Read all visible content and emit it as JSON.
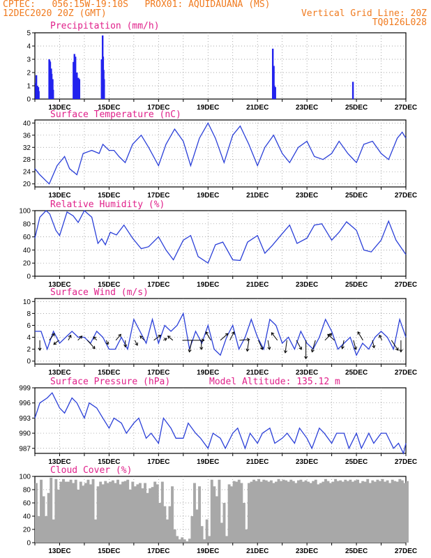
{
  "header": {
    "line1_left": "CPTEC:   056:15W-19:10S   PROX01: AQUIDAUANA (MS)",
    "line2_left": "12DEC2020 20Z (GMT)",
    "line2_right": "Vertical Grid Line: 20Z",
    "line3_right": "TQ0126L028"
  },
  "colors": {
    "header": "#f07a1e",
    "panel_title": "#e0208a",
    "line": "#2a3fd8",
    "bar": "#2222ee",
    "cloud": "#a8a8a8",
    "arrow": "#000000"
  },
  "chart_data": [
    {
      "type": "bar",
      "title": "Precipitation (mm/h)",
      "xlabel": "",
      "ylabel": "",
      "ylim": [
        0,
        5
      ],
      "yticks": [
        "0",
        "1",
        "2",
        "3",
        "4",
        "5"
      ],
      "xticks": [
        "13DEC",
        "15DEC",
        "17DEC",
        "19DEC",
        "21DEC",
        "23DEC",
        "25DEC",
        "27DEC"
      ],
      "x": [
        12.04,
        12.06,
        12.08,
        12.1,
        12.14,
        12.16,
        12.58,
        12.6,
        12.62,
        12.66,
        12.68,
        12.72,
        12.74,
        13.56,
        13.6,
        13.62,
        13.64,
        13.66,
        13.7,
        13.72,
        13.74,
        13.76,
        13.8,
        14.7,
        14.74,
        14.76,
        14.78,
        14.8,
        21.62,
        21.66,
        21.68,
        21.72,
        24.86
      ],
      "values": [
        1.2,
        1.8,
        0.8,
        1.0,
        0.9,
        0.6,
        3.0,
        2.9,
        2.8,
        2.3,
        1.9,
        1.5,
        0.7,
        2.8,
        3.4,
        2.0,
        3.2,
        1.6,
        2.0,
        1.5,
        1.2,
        1.6,
        1.5,
        3.0,
        4.8,
        3.2,
        2.2,
        1.5,
        3.8,
        2.5,
        1.0,
        0.9,
        1.3
      ],
      "grid": true
    },
    {
      "type": "line",
      "title": "Surface Temperature (nC)",
      "ylim": [
        19,
        41
      ],
      "yticks": [
        "20",
        "24",
        "28",
        "32",
        "36",
        "40"
      ],
      "xticks": [
        "13DEC",
        "15DEC",
        "17DEC",
        "19DEC",
        "21DEC",
        "23DEC",
        "25DEC",
        "27DEC"
      ],
      "series": [
        {
          "x": [
            12.0,
            12.2,
            12.45,
            12.58,
            12.9,
            13.2,
            13.4,
            13.7,
            13.95,
            14.3,
            14.6,
            14.75,
            15.0,
            15.2,
            15.4,
            15.65,
            15.95,
            16.3,
            16.6,
            17.0,
            17.3,
            17.65,
            18.0,
            18.3,
            18.65,
            19.0,
            19.3,
            19.65,
            20.0,
            20.3,
            20.65,
            21.0,
            21.3,
            21.65,
            22.0,
            22.3,
            22.65,
            23.0,
            23.3,
            23.65,
            24.0,
            24.3,
            24.65,
            25.0,
            25.3,
            25.65,
            26.0,
            26.3,
            26.65,
            26.85,
            27.0
          ],
          "y": [
            25,
            23,
            21,
            20,
            26,
            29,
            25,
            23,
            30,
            31,
            30,
            33,
            31,
            31,
            29,
            27,
            33,
            36,
            32,
            26,
            33,
            38,
            34,
            26,
            35,
            40,
            35,
            27,
            36,
            39,
            33,
            26,
            32,
            36,
            30,
            27,
            32,
            34,
            29,
            28,
            30,
            34,
            30,
            27,
            33,
            34,
            30,
            28,
            35,
            37,
            35
          ]
        }
      ],
      "grid": true
    },
    {
      "type": "line",
      "title": "Relative Humidity (%)",
      "ylim": [
        0,
        100
      ],
      "yticks": [
        "0",
        "20",
        "40",
        "60",
        "80",
        "100"
      ],
      "xticks": [
        "13DEC",
        "15DEC",
        "17DEC",
        "19DEC",
        "21DEC",
        "23DEC",
        "25DEC",
        "27DEC"
      ],
      "series": [
        {
          "x": [
            12.0,
            12.2,
            12.45,
            12.6,
            12.85,
            13.0,
            13.3,
            13.55,
            13.75,
            14.0,
            14.3,
            14.55,
            14.7,
            14.85,
            15.05,
            15.3,
            15.6,
            15.95,
            16.3,
            16.6,
            17.0,
            17.3,
            17.6,
            18.0,
            18.3,
            18.6,
            19.0,
            19.3,
            19.6,
            20.0,
            20.3,
            20.6,
            21.0,
            21.3,
            21.6,
            22.0,
            22.3,
            22.6,
            23.0,
            23.3,
            23.6,
            24.0,
            24.3,
            24.6,
            25.0,
            25.3,
            25.6,
            26.0,
            26.3,
            26.6,
            27.0
          ],
          "y": [
            58,
            90,
            100,
            95,
            70,
            62,
            98,
            92,
            82,
            100,
            90,
            50,
            57,
            48,
            67,
            63,
            78,
            58,
            42,
            45,
            60,
            40,
            25,
            55,
            62,
            30,
            20,
            48,
            52,
            25,
            24,
            52,
            62,
            35,
            47,
            65,
            78,
            50,
            58,
            78,
            80,
            55,
            67,
            83,
            70,
            40,
            37,
            55,
            84,
            55,
            33
          ]
        }
      ],
      "grid": true
    },
    {
      "type": "line",
      "title": "Surface Wind (m/s)",
      "ylim": [
        -0.5,
        10.5
      ],
      "yticks": [
        "0",
        "2",
        "4",
        "6",
        "8",
        "10"
      ],
      "xticks": [
        "13DEC",
        "15DEC",
        "17DEC",
        "19DEC",
        "21DEC",
        "23DEC",
        "25DEC",
        "27DEC"
      ],
      "series": [
        {
          "x": [
            12.0,
            12.25,
            12.5,
            12.75,
            13.0,
            13.25,
            13.5,
            13.75,
            14.0,
            14.25,
            14.5,
            14.75,
            15.0,
            15.25,
            15.5,
            15.75,
            16.0,
            16.25,
            16.5,
            16.75,
            17.0,
            17.25,
            17.5,
            17.75,
            18.0,
            18.25,
            18.5,
            18.75,
            19.0,
            19.25,
            19.5,
            19.75,
            20.0,
            20.25,
            20.5,
            20.75,
            21.0,
            21.25,
            21.5,
            21.75,
            22.0,
            22.25,
            22.5,
            22.75,
            23.0,
            23.25,
            23.5,
            23.75,
            24.0,
            24.25,
            24.5,
            24.75,
            25.0,
            25.25,
            25.5,
            25.75,
            26.0,
            26.25,
            26.5,
            26.75,
            27.0
          ],
          "y": [
            5,
            5,
            2,
            5,
            3,
            4,
            5,
            4,
            4,
            3,
            5,
            4,
            2,
            2,
            4,
            2,
            7,
            5,
            3,
            7,
            3,
            6,
            5,
            6,
            8,
            2,
            5,
            3,
            6,
            2,
            1,
            4,
            6,
            2,
            4,
            7,
            4,
            2,
            7,
            6,
            3,
            4,
            2,
            5,
            3,
            2,
            4,
            7,
            5,
            2,
            3,
            4,
            1,
            3,
            2,
            4,
            5,
            4,
            2,
            7,
            4
          ]
        }
      ],
      "arrows": {
        "u": [
          0.0,
          0.6,
          -0.6,
          0.3,
          0.5,
          0.9,
          -0.4,
          0.2,
          0.6,
          0.0,
          0.3,
          -0.5,
          0.8,
          0.4,
          -0.6,
          2.6,
          -0.3,
          0.0,
          -0.6,
          0.9,
          0.5,
          1.2,
          -0.2,
          0.5,
          0.2,
          -0.7,
          -0.2,
          0.6,
          0.0,
          -0.4,
          0.8,
          -0.8,
          -0.2,
          0.3,
          -0.6,
          0.2,
          -0.3,
          0.8,
          0.0
        ],
        "v": [
          -1.2,
          0.8,
          -0.5,
          0.6,
          0.5,
          -1.0,
          0.4,
          -0.5,
          0.7,
          -0.8,
          -0.6,
          0.5,
          0.6,
          0.2,
          0.5,
          0.0,
          -1.4,
          -1.1,
          1.0,
          0.8,
          1.0,
          0.1,
          -1.3,
          -1.1,
          -1.1,
          0.9,
          -1.5,
          -1.1,
          -2.2,
          -1.4,
          0.8,
          0.7,
          -1.0,
          -1.1,
          1.0,
          -0.9,
          0.6,
          -1.2,
          -1.4
        ]
      },
      "grid": true
    },
    {
      "type": "line",
      "title": "Surface Pressure (hPa)",
      "annotation": "Model Altitude: 135.12 m",
      "ylim": [
        986,
        999
      ],
      "yticks": [
        "987",
        "990",
        "993",
        "996",
        "999"
      ],
      "xticks": [
        "13DEC",
        "15DEC",
        "17DEC",
        "19DEC",
        "21DEC",
        "23DEC",
        "25DEC",
        "27DEC"
      ],
      "series": [
        {
          "x": [
            12.0,
            12.2,
            12.5,
            12.7,
            13.0,
            13.2,
            13.5,
            13.7,
            14.0,
            14.2,
            14.5,
            14.75,
            15.0,
            15.2,
            15.5,
            15.7,
            16.0,
            16.2,
            16.5,
            16.7,
            17.0,
            17.2,
            17.5,
            17.7,
            18.0,
            18.2,
            18.5,
            18.7,
            19.0,
            19.2,
            19.5,
            19.7,
            20.0,
            20.2,
            20.5,
            20.7,
            21.0,
            21.2,
            21.5,
            21.7,
            22.0,
            22.2,
            22.5,
            22.7,
            23.0,
            23.2,
            23.5,
            23.7,
            24.0,
            24.2,
            24.5,
            24.7,
            25.0,
            25.2,
            25.5,
            25.7,
            26.0,
            26.2,
            26.5,
            26.7,
            26.9,
            27.0
          ],
          "y": [
            993,
            996,
            997,
            998,
            995,
            994,
            997,
            996,
            993,
            996,
            995,
            993,
            991,
            993,
            992,
            990,
            992,
            993,
            989,
            990,
            988,
            993,
            991,
            989,
            989,
            992,
            990,
            989,
            987,
            990,
            989,
            987,
            990,
            991,
            987,
            990,
            988,
            990,
            991,
            988,
            989,
            990,
            988,
            991,
            989,
            987,
            991,
            990,
            988,
            990,
            990,
            987,
            990,
            987,
            990,
            988,
            990,
            990,
            987,
            988,
            986,
            988
          ]
        }
      ],
      "grid": true
    },
    {
      "type": "area",
      "title": "Cloud Cover (%)",
      "ylim": [
        0,
        100
      ],
      "yticks": [
        "0",
        "20",
        "40",
        "60",
        "80",
        "100"
      ],
      "xticks": [
        "13DEC",
        "15DEC",
        "17DEC",
        "19DEC",
        "21DEC",
        "23DEC",
        "25DEC",
        "27DEC"
      ],
      "x": [
        12.0,
        12.1,
        12.2,
        12.3,
        12.4,
        12.5,
        12.6,
        12.7,
        12.8,
        12.9,
        13.0,
        13.1,
        13.2,
        13.3,
        13.4,
        13.5,
        13.6,
        13.7,
        13.8,
        13.9,
        14.0,
        14.1,
        14.2,
        14.3,
        14.4,
        14.5,
        14.6,
        14.7,
        14.8,
        14.9,
        15.0,
        15.1,
        15.2,
        15.3,
        15.4,
        15.5,
        15.6,
        15.7,
        15.8,
        15.9,
        16.0,
        16.1,
        16.2,
        16.3,
        16.4,
        16.5,
        16.6,
        16.7,
        16.8,
        16.9,
        17.0,
        17.1,
        17.2,
        17.3,
        17.4,
        17.5,
        17.6,
        17.7,
        17.8,
        17.9,
        18.0,
        18.1,
        18.2,
        18.3,
        18.4,
        18.5,
        18.6,
        18.7,
        18.8,
        18.9,
        19.0,
        19.1,
        19.2,
        19.3,
        19.4,
        19.5,
        19.6,
        19.7,
        19.8,
        19.9,
        20.0,
        20.1,
        20.2,
        20.3,
        20.4,
        20.5,
        20.6,
        20.7,
        20.8,
        20.9,
        21.0,
        21.1,
        21.2,
        21.3,
        21.4,
        21.5,
        21.6,
        21.7,
        21.8,
        21.9,
        22.0,
        22.1,
        22.2,
        22.3,
        22.4,
        22.5,
        22.6,
        22.7,
        22.8,
        22.9,
        23.0,
        23.1,
        23.2,
        23.3,
        23.4,
        23.5,
        23.6,
        23.7,
        23.8,
        23.9,
        24.0,
        24.1,
        24.2,
        24.3,
        24.4,
        24.5,
        24.6,
        24.7,
        24.8,
        24.9,
        25.0,
        25.1,
        25.2,
        25.3,
        25.4,
        25.5,
        25.6,
        25.7,
        25.8,
        25.9,
        26.0,
        26.1,
        26.2,
        26.3,
        26.4,
        26.5,
        26.6,
        26.7,
        26.8,
        26.9,
        27.0
      ],
      "values": [
        90,
        40,
        95,
        70,
        40,
        75,
        98,
        35,
        96,
        80,
        92,
        96,
        92,
        92,
        95,
        90,
        95,
        80,
        92,
        86,
        90,
        95,
        88,
        96,
        35,
        85,
        92,
        88,
        93,
        90,
        92,
        94,
        90,
        95,
        88,
        92,
        93,
        95,
        80,
        92,
        85,
        88,
        90,
        82,
        90,
        75,
        82,
        84,
        92,
        88,
        60,
        92,
        55,
        35,
        55,
        85,
        20,
        10,
        5,
        8,
        5,
        2,
        6,
        40,
        90,
        50,
        85,
        25,
        5,
        35,
        10,
        95,
        85,
        70,
        95,
        30,
        60,
        10,
        88,
        85,
        93,
        92,
        95,
        90,
        60,
        20,
        90,
        92,
        95,
        93,
        96,
        92,
        95,
        94,
        92,
        94,
        90,
        92,
        96,
        93,
        95,
        94,
        92,
        95,
        93,
        90,
        94,
        95,
        92,
        94,
        92,
        90,
        93,
        95,
        88,
        90,
        92,
        96,
        93,
        90,
        92,
        96,
        93,
        94,
        92,
        95,
        93,
        95,
        92,
        94,
        95,
        90,
        93,
        92,
        96,
        90,
        94,
        92,
        95,
        93,
        96,
        92,
        94,
        90,
        95,
        93,
        92,
        96,
        94,
        90,
        93
      ],
      "grid": true
    }
  ]
}
